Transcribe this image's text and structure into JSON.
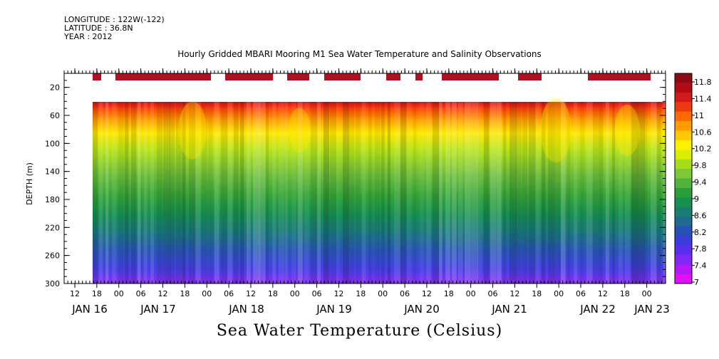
{
  "meta": {
    "longitude": "LONGITUDE : 122W(-122)",
    "latitude": "LATITUDE : 36.8N",
    "year": "YEAR : 2012"
  },
  "chart_data": {
    "type": "heatmap",
    "title": "Hourly Gridded MBARI Mooring M1 Sea Water Temperature and Salinity Observations",
    "ylabel": "DEPTH (m)",
    "xlabel": "Sea Water Temperature (Celsius)",
    "ylim": [
      300,
      0
    ],
    "y_ticks": [
      "20",
      "60",
      "100",
      "140",
      "180",
      "220",
      "260",
      "300"
    ],
    "hour_ticks": [
      "12",
      "18",
      "00",
      "06",
      "12",
      "18",
      "00",
      "06",
      "12",
      "18",
      "00",
      "06",
      "12",
      "18",
      "00",
      "06",
      "12",
      "18",
      "00",
      "06",
      "12",
      "18",
      "00",
      "06",
      "12",
      "18",
      "00"
    ],
    "date_ticks": [
      "JAN 16",
      "JAN 17",
      "JAN 18",
      "JAN 19",
      "JAN 20",
      "JAN 21",
      "JAN 22",
      "JAN 23"
    ],
    "colorbar": {
      "labels": [
        "11.8",
        "11.4",
        "11",
        "10.6",
        "10.2",
        "9.8",
        "9.4",
        "9",
        "8.6",
        "8.2",
        "7.8",
        "7.4",
        "7"
      ],
      "colors": [
        "#8b0a14",
        "#b00c18",
        "#d21a1a",
        "#ee3a10",
        "#ff6a00",
        "#ff9a00",
        "#ffc800",
        "#fff000",
        "#d8f000",
        "#a6dc1a",
        "#7cc83a",
        "#52b43c",
        "#2c9e3a",
        "#189050",
        "#1a7e72",
        "#1f6a8e",
        "#2850b6",
        "#3c3cdc",
        "#5a2ef0",
        "#8228f6",
        "#b418f8",
        "#e010f8"
      ]
    },
    "surface_cells": [
      "JAN 16 18",
      "JAN 17 00-JAN 17 18",
      "JAN 18 06-JAN 18 18",
      "JAN 18 22-JAN 19 04",
      "JAN 19 08-JAN 19 18",
      "JAN 20 02-JAN 20 06",
      "JAN 20 10",
      "JAN 20 16-JAN 21 10",
      "JAN 21 14-JAN 21 18",
      "JAN 22 08-JAN 23 00"
    ]
  }
}
